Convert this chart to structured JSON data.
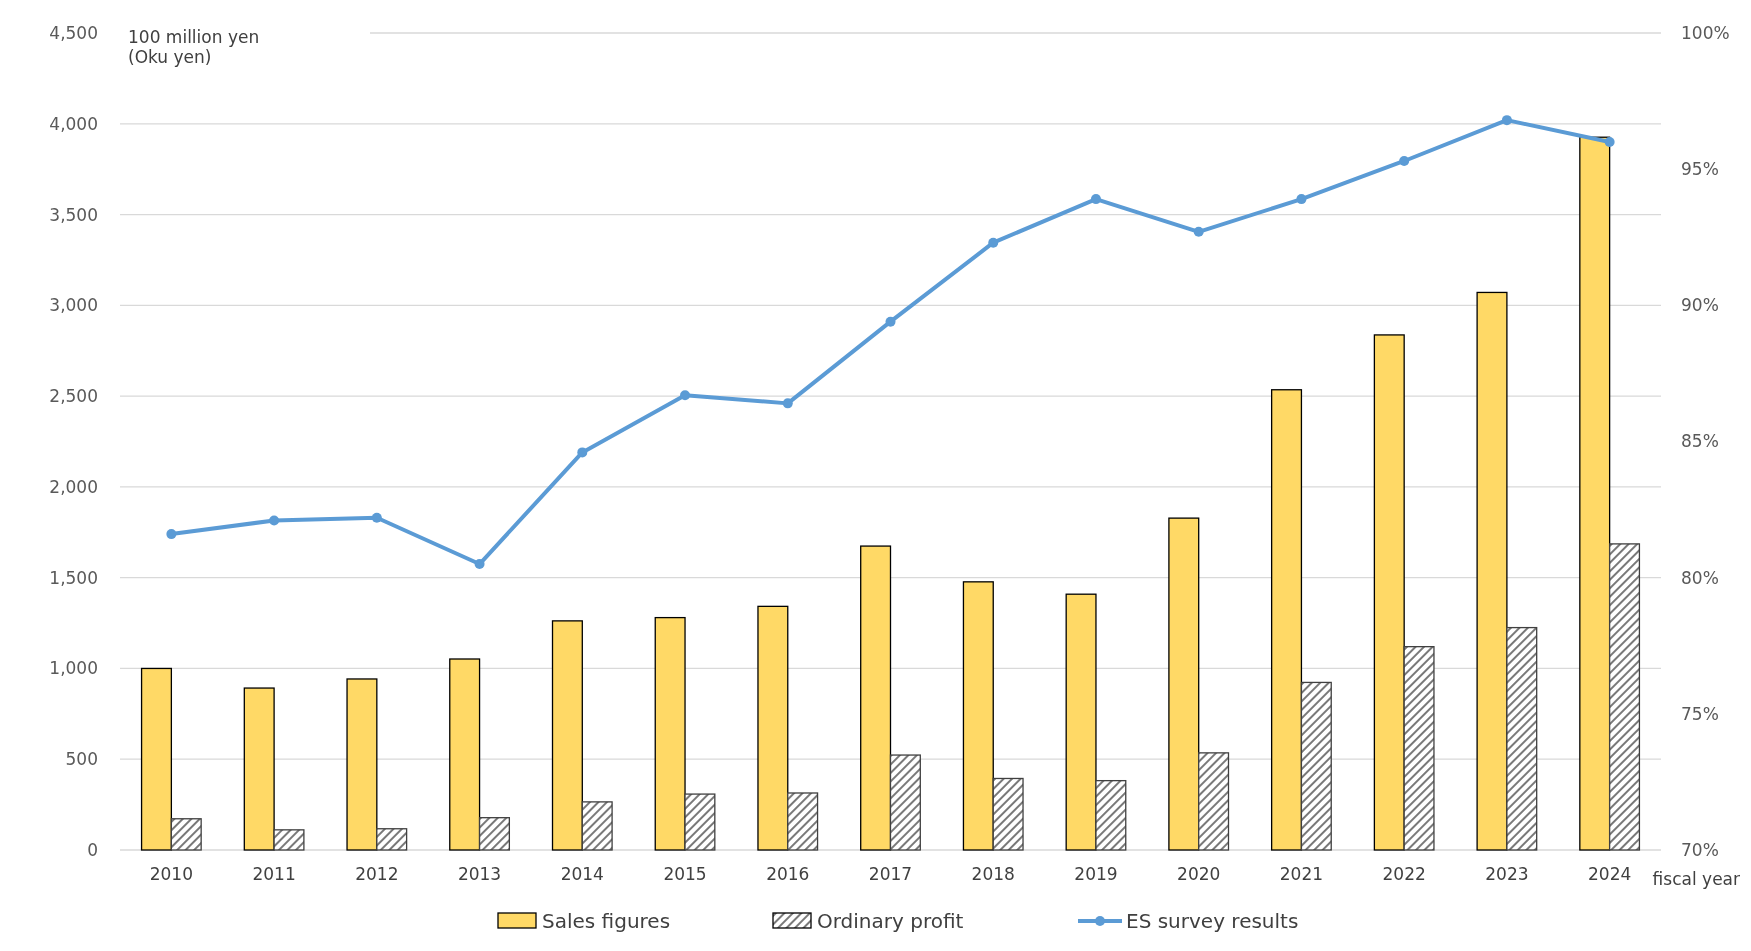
{
  "chart_data": {
    "type": "bar",
    "categories": [
      "2010",
      "2011",
      "2012",
      "2013",
      "2014",
      "2015",
      "2016",
      "2017",
      "2018",
      "2019",
      "2020",
      "2021",
      "2022",
      "2023",
      "2024"
    ],
    "series": [
      {
        "name": "Sales figures",
        "color": "#ffd966",
        "values": [
          1000,
          892,
          942,
          1052,
          1262,
          1280,
          1342,
          1674,
          1477,
          1409,
          1828,
          2535,
          2837,
          3071,
          3926
        ]
      },
      {
        "name": "Ordinary profit",
        "color": "#404040",
        "values": [
          172,
          111,
          117,
          178,
          265,
          308,
          314,
          523,
          394,
          382,
          535,
          923,
          1120,
          1225,
          1686
        ]
      },
      {
        "name": "ES survey results",
        "type": "line",
        "axis": "y2",
        "color": "#5b9bd5",
        "values": [
          81.6,
          82.1,
          82.2,
          80.5,
          84.6,
          86.7,
          86.4,
          89.4,
          92.3,
          93.9,
          92.7,
          93.9,
          95.3,
          96.8,
          96.0
        ]
      }
    ],
    "ylabel": "100 million yen\n(Oku yen)",
    "xlabel": "fiscal year",
    "ylim": [
      0,
      4500
    ],
    "yticks": [
      {
        "value": 0,
        "label": "0"
      },
      {
        "value": 500,
        "label": "500"
      },
      {
        "value": 1000,
        "label": "1,000"
      },
      {
        "value": 1500,
        "label": "1,500"
      },
      {
        "value": 2000,
        "label": "2,000"
      },
      {
        "value": 2500,
        "label": "2,500"
      },
      {
        "value": 3000,
        "label": "3,000"
      },
      {
        "value": 3500,
        "label": "3,500"
      },
      {
        "value": 4000,
        "label": "4,000"
      },
      {
        "value": 4500,
        "label": "4,500"
      }
    ],
    "y2lim": [
      70,
      100
    ],
    "y2ticks": [
      {
        "value": 70,
        "label": "70%"
      },
      {
        "value": 75,
        "label": "75%"
      },
      {
        "value": 80,
        "label": "80%"
      },
      {
        "value": 85,
        "label": "85%"
      },
      {
        "value": 90,
        "label": "90%"
      },
      {
        "value": 95,
        "label": "95%"
      },
      {
        "value": 100,
        "label": "100%"
      }
    ],
    "grid": "y",
    "legend": "bottom",
    "marker": "circle",
    "line_style": "solid"
  }
}
